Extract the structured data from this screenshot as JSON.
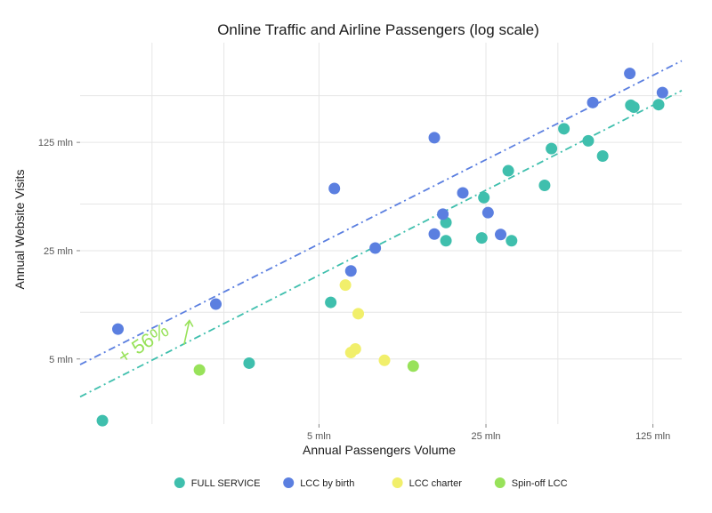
{
  "chart_data": {
    "type": "scatter",
    "title": "Online Traffic and Airline Passengers (log scale)",
    "xlabel": "Annual Passengers Volume",
    "ylabel": "Annual Website Visits",
    "x_scale": "log",
    "y_scale": "log",
    "xlim": [
      0.5,
      165
    ],
    "ylim": [
      1.9,
      550
    ],
    "x_ticks": [
      {
        "value": 5,
        "label": "5 mln"
      },
      {
        "value": 25,
        "label": "25 mln"
      },
      {
        "value": 125,
        "label": "125 mln"
      }
    ],
    "y_ticks": [
      {
        "value": 5,
        "label": "5 mln"
      },
      {
        "value": 25,
        "label": "25 mln"
      },
      {
        "value": 125,
        "label": "125 mln"
      }
    ],
    "minor_x_grid": [
      1,
      2,
      50
    ],
    "minor_y_grid": [
      10,
      50,
      250
    ],
    "legend_position": "bottom",
    "series": [
      {
        "name": "FULL SERVICE",
        "color": "#3fbfad",
        "points": [
          [
            0.62,
            2.0
          ],
          [
            2.55,
            4.7
          ],
          [
            5.6,
            11.6
          ],
          [
            17.0,
            38.0
          ],
          [
            17.0,
            29.0
          ],
          [
            24.0,
            30.2
          ],
          [
            24.5,
            55.0
          ],
          [
            31.0,
            82.0
          ],
          [
            32.0,
            29.0
          ],
          [
            44.0,
            66.0
          ],
          [
            47.0,
            114.0
          ],
          [
            53.0,
            153.0
          ],
          [
            67.0,
            128.0
          ],
          [
            77.0,
            102.0
          ],
          [
            101.0,
            217.0
          ],
          [
            104.0,
            211.0
          ],
          [
            132.0,
            219.0
          ]
        ]
      },
      {
        "name": "LCC by birth",
        "color": "#5b7fe0",
        "points": [
          [
            0.72,
            7.8
          ],
          [
            1.85,
            11.3
          ],
          [
            5.8,
            63.0
          ],
          [
            6.8,
            18.5
          ],
          [
            8.6,
            26.0
          ],
          [
            15.2,
            32.0
          ],
          [
            16.5,
            43.0
          ],
          [
            15.2,
            134.0
          ],
          [
            20.0,
            59.0
          ],
          [
            25.5,
            44.0
          ],
          [
            28.8,
            31.8
          ],
          [
            70.0,
            226.0
          ],
          [
            100.0,
            348.0
          ],
          [
            137.0,
            262.0
          ]
        ]
      },
      {
        "name": "LCC charter",
        "color": "#f1ef6b",
        "points": [
          [
            6.45,
            15.0
          ],
          [
            7.3,
            9.8
          ],
          [
            7.1,
            5.8
          ],
          [
            6.8,
            5.5
          ],
          [
            9.4,
            4.9
          ]
        ]
      },
      {
        "name": "Spin-off LCC",
        "color": "#98e25a",
        "points": [
          [
            1.58,
            4.25
          ],
          [
            12.4,
            4.5
          ]
        ]
      }
    ],
    "trend_lines": [
      {
        "name": "LCC by birth trend",
        "color": "#5b7fe0",
        "from": [
          0.5,
          4.6
        ],
        "to": [
          165,
          420
        ]
      },
      {
        "name": "FULL SERVICE trend",
        "color": "#3fbfad",
        "from": [
          0.5,
          2.85
        ],
        "to": [
          165,
          270
        ]
      }
    ],
    "annotation": {
      "text": "+ 56%",
      "color": "#98e25a",
      "at": [
        0.95,
        5.8
      ]
    }
  }
}
